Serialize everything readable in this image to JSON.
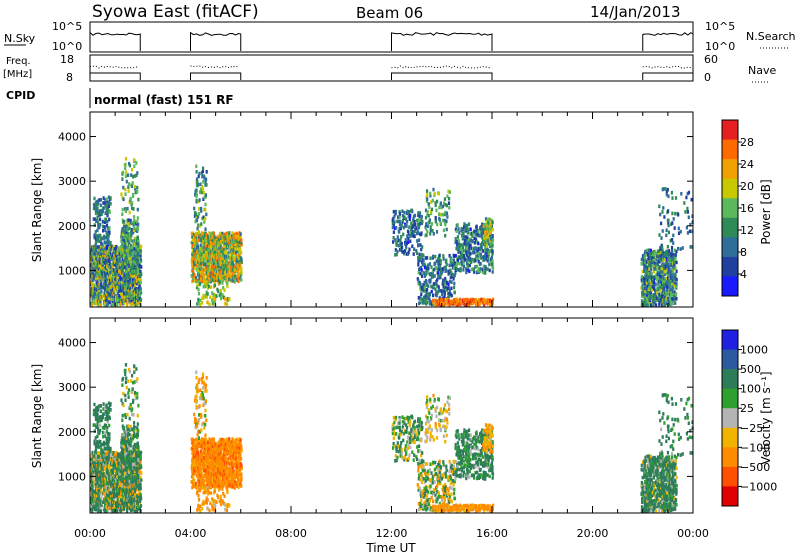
{
  "header": {
    "station": "Syowa East (fitACF)",
    "beam": "Beam 06",
    "date": "14/Jan/2013"
  },
  "panels": {
    "nsky_label": "N.Sky",
    "nsky_ticks": [
      "10^5",
      "10^0"
    ],
    "nsearch_label": "N.Search",
    "nsearch_ticks": [
      "10^5",
      "10^0"
    ],
    "freq_label_1": "Freq.",
    "freq_label_2": "[MHz]",
    "freq_ticks": [
      "18",
      "8"
    ],
    "nave_label": "Nave",
    "nave_ticks": [
      "60",
      "0"
    ],
    "cpid_label": "CPID",
    "cpid_text": "normal (fast) 151 RF"
  },
  "colors": {
    "power": [
      "#1a1aff",
      "#2040a0",
      "#2f6e9a",
      "#2e8b57",
      "#5cb85c",
      "#c8c800",
      "#f0a000",
      "#ff6a00",
      "#e62020"
    ],
    "velocity": [
      "#e00000",
      "#ff5000",
      "#ff8c00",
      "#f0b400",
      "#b4b4b4",
      "#2ea02e",
      "#2e7d5a",
      "#2c5aa0",
      "#2020e0"
    ]
  },
  "chart_data": [
    {
      "type": "heatmap",
      "name": "power",
      "ylabel": "Slant Range [km]",
      "xlabel": "",
      "x_ticks": [
        "00:00",
        "04:00",
        "08:00",
        "12:00",
        "16:00",
        "20:00",
        "00:00"
      ],
      "y_ticks": [
        1000,
        2000,
        3000,
        4000
      ],
      "xlim_hours": [
        0,
        24
      ],
      "ylim_km": [
        180,
        4550
      ],
      "colorbar_label": "Power [dB]",
      "colorbar_ticks": [
        "4",
        "8",
        "12",
        "16",
        "20",
        "24",
        "28"
      ],
      "colorbar_range": [
        0,
        30
      ]
    },
    {
      "type": "heatmap",
      "name": "velocity",
      "ylabel": "Slant Range [km]",
      "xlabel": "Time UT",
      "x_ticks": [
        "00:00",
        "04:00",
        "08:00",
        "12:00",
        "16:00",
        "20:00",
        "00:00"
      ],
      "y_ticks": [
        1000,
        2000,
        3000,
        4000
      ],
      "xlim_hours": [
        0,
        24
      ],
      "ylim_km": [
        180,
        4550
      ],
      "colorbar_label": "Velocity [m s⁻¹]",
      "colorbar_ticks": [
        "1000",
        "500",
        "100",
        "25",
        "−25",
        "−100",
        "−500",
        "−1000"
      ]
    }
  ]
}
